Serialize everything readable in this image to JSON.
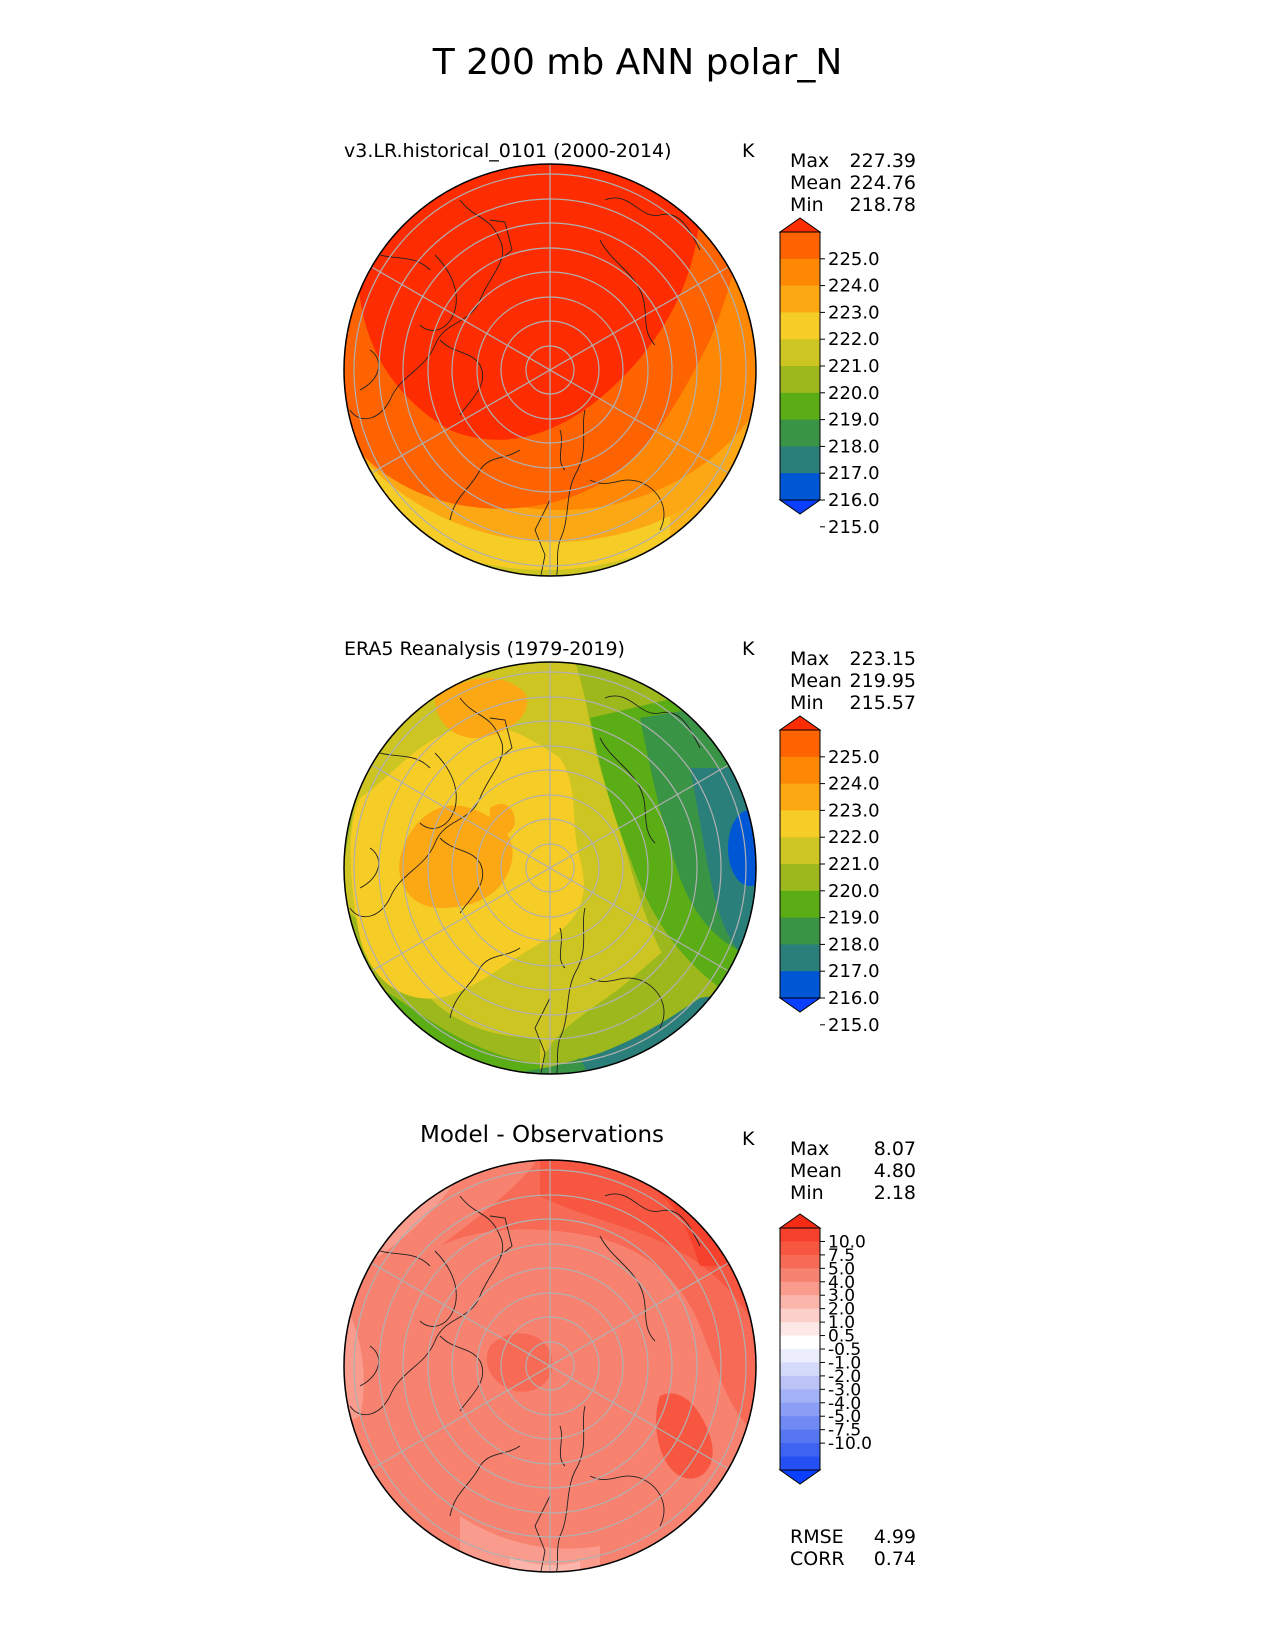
{
  "title": "T 200 mb ANN polar_N",
  "colors": {
    "abs": [
      "#0a3ffd",
      "#0057d6",
      "#2a7f7a",
      "#3a9445",
      "#5aad14",
      "#9db81d",
      "#cdc622",
      "#f6cd27",
      "#fca714",
      "#fe8704",
      "#fe6302",
      "#fe2d01"
    ],
    "diff": [
      "#0a3ffd",
      "#2551f4",
      "#3e63f3",
      "#5777f2",
      "#708af4",
      "#8a9ef5",
      "#a3b1f6",
      "#bcc4f7",
      "#d3dafa",
      "#eceefd",
      "#ffffff",
      "#fde8e6",
      "#fccfc9",
      "#fbb5ab",
      "#f99b8d",
      "#f88270",
      "#f76a55",
      "#f75640",
      "#f6412c",
      "#f52b16"
    ]
  },
  "panels": [
    {
      "id": "test",
      "title": "v3.LR.historical_0101 (2000-2014)",
      "units": "K",
      "stats": [
        {
          "label": "Max",
          "value": "227.39"
        },
        {
          "label": "Mean",
          "value": "224.76"
        },
        {
          "label": "Min",
          "value": "218.78"
        }
      ],
      "colorbar": {
        "palette": "abs",
        "ticks": [
          "225.0",
          "224.0",
          "223.0",
          "222.0",
          "221.0",
          "220.0",
          "219.0",
          "218.0",
          "217.0",
          "216.0",
          "215.0"
        ]
      }
    },
    {
      "id": "ref",
      "title": "ERA5 Reanalysis (1979-2019)",
      "units": "K",
      "stats": [
        {
          "label": "Max",
          "value": "223.15"
        },
        {
          "label": "Mean",
          "value": "219.95"
        },
        {
          "label": "Min",
          "value": "215.57"
        }
      ],
      "colorbar": {
        "palette": "abs",
        "ticks": [
          "225.0",
          "224.0",
          "223.0",
          "222.0",
          "221.0",
          "220.0",
          "219.0",
          "218.0",
          "217.0",
          "216.0",
          "215.0"
        ]
      }
    },
    {
      "id": "diff",
      "title": "Model - Observations",
      "units": "K",
      "stats": [
        {
          "label": "Max",
          "value": "8.07"
        },
        {
          "label": "Mean",
          "value": "4.80"
        },
        {
          "label": "Min",
          "value": "2.18"
        }
      ],
      "colorbar": {
        "palette": "diff",
        "ticks": [
          "10.0",
          "7.5",
          "5.0",
          "4.0",
          "3.0",
          "2.0",
          "1.0",
          "0.5",
          "-0.5",
          "-1.0",
          "-2.0",
          "-3.0",
          "-4.0",
          "-5.0",
          "-7.5",
          "-10.0"
        ]
      }
    }
  ],
  "bottom_stats": [
    {
      "label": "RMSE",
      "value": "4.99"
    },
    {
      "label": "CORR",
      "value": "0.74"
    }
  ]
}
